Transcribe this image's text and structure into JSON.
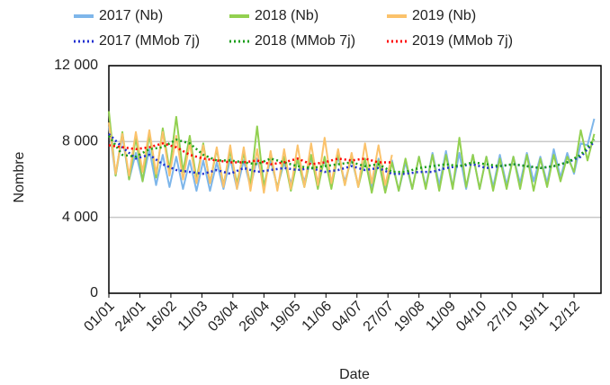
{
  "chart_data": {
    "type": "line",
    "x_label": "Date",
    "y_label": "Nombre",
    "xlim": [
      0,
      365
    ],
    "ylim": [
      0,
      12000
    ],
    "xticks": [
      {
        "value": 0,
        "label": "01/01"
      },
      {
        "value": 23,
        "label": "24/01"
      },
      {
        "value": 46,
        "label": "16/02"
      },
      {
        "value": 69,
        "label": "11/03"
      },
      {
        "value": 92,
        "label": "03/04"
      },
      {
        "value": 115,
        "label": "26/04"
      },
      {
        "value": 138,
        "label": "19/05"
      },
      {
        "value": 161,
        "label": "11/06"
      },
      {
        "value": 184,
        "label": "04/07"
      },
      {
        "value": 207,
        "label": "27/07"
      },
      {
        "value": 230,
        "label": "19/08"
      },
      {
        "value": 253,
        "label": "11/09"
      },
      {
        "value": 276,
        "label": "04/10"
      },
      {
        "value": 299,
        "label": "27/10"
      },
      {
        "value": 322,
        "label": "19/11"
      },
      {
        "value": 345,
        "label": "12/12"
      }
    ],
    "yticks": [
      0,
      {
        "value": 4000,
        "label": "4 000"
      },
      {
        "value": 8000,
        "label": "8 000"
      },
      {
        "value": 12000,
        "label": "12 000"
      }
    ],
    "grid": true,
    "series": [
      {
        "name": "2017 (Nb)",
        "color": "#7eb6ea",
        "dashed": false,
        "x": [
          0,
          5,
          10,
          15,
          20,
          25,
          30,
          35,
          40,
          45,
          50,
          55,
          60,
          65,
          70,
          75,
          80,
          85,
          90,
          95,
          100,
          105,
          110,
          115,
          120,
          125,
          130,
          135,
          140,
          145,
          150,
          155,
          160,
          165,
          170,
          175,
          180,
          185,
          190,
          195,
          200,
          205,
          210,
          215,
          220,
          225,
          230,
          235,
          240,
          245,
          250,
          255,
          260,
          265,
          270,
          275,
          280,
          285,
          290,
          295,
          300,
          305,
          310,
          315,
          320,
          325,
          330,
          335,
          340,
          345,
          350,
          355,
          360
        ],
        "values": [
          8800,
          6200,
          8300,
          6000,
          7400,
          5900,
          7600,
          5700,
          7300,
          5600,
          7200,
          5500,
          7000,
          5400,
          7000,
          5400,
          6900,
          5500,
          7100,
          5500,
          7000,
          5600,
          7100,
          5700,
          7000,
          5600,
          6900,
          5800,
          7000,
          5900,
          7100,
          5900,
          7000,
          5800,
          7200,
          5900,
          7100,
          5700,
          7000,
          5600,
          7100,
          5500,
          7000,
          5400,
          6900,
          5500,
          7200,
          5600,
          7400,
          5700,
          7500,
          5600,
          7400,
          5500,
          7300,
          5500,
          7200,
          5600,
          7300,
          5700,
          7200,
          5800,
          7400,
          5900,
          7200,
          5800,
          7600,
          6100,
          7400,
          6300,
          7900,
          7800,
          9200
        ]
      },
      {
        "name": "2018 (Nb)",
        "color": "#92d050",
        "dashed": false,
        "x": [
          0,
          5,
          10,
          15,
          20,
          25,
          30,
          35,
          40,
          45,
          50,
          55,
          60,
          65,
          70,
          75,
          80,
          85,
          90,
          95,
          100,
          105,
          110,
          115,
          120,
          125,
          130,
          135,
          140,
          145,
          150,
          155,
          160,
          165,
          170,
          175,
          180,
          185,
          190,
          195,
          200,
          205,
          210,
          215,
          220,
          225,
          230,
          235,
          240,
          245,
          250,
          255,
          260,
          265,
          270,
          275,
          280,
          285,
          290,
          295,
          300,
          305,
          310,
          315,
          320,
          325,
          330,
          335,
          340,
          345,
          350,
          355,
          360
        ],
        "values": [
          9600,
          6200,
          8500,
          6000,
          8200,
          5900,
          8400,
          6100,
          8700,
          6500,
          9300,
          6400,
          8300,
          6000,
          7900,
          5800,
          7600,
          5700,
          7500,
          5800,
          7400,
          5700,
          8800,
          5600,
          7300,
          5500,
          7200,
          5400,
          7100,
          5600,
          7300,
          5500,
          7200,
          5500,
          7400,
          5700,
          7300,
          5600,
          7100,
          5300,
          7000,
          5300,
          6900,
          5400,
          7100,
          5500,
          7200,
          5500,
          7300,
          5400,
          7300,
          5500,
          8200,
          5600,
          7300,
          5500,
          7200,
          5400,
          7100,
          5500,
          7200,
          5500,
          7300,
          5400,
          7100,
          5600,
          7300,
          5900,
          7200,
          6400,
          8600,
          7000,
          8400
        ]
      },
      {
        "name": "2019 (Nb)",
        "color": "#fbc26b",
        "dashed": false,
        "x": [
          0,
          5,
          10,
          15,
          20,
          25,
          30,
          35,
          40,
          45,
          50,
          55,
          60,
          65,
          70,
          75,
          80,
          85,
          90,
          95,
          100,
          105,
          110,
          115,
          120,
          125,
          130,
          135,
          140,
          145,
          150,
          155,
          160,
          165,
          170,
          175,
          180,
          185,
          190,
          195,
          200,
          205,
          210
        ],
        "values": [
          9000,
          6300,
          8400,
          6200,
          8500,
          6400,
          8600,
          6300,
          8500,
          6200,
          8300,
          6000,
          7900,
          5800,
          7800,
          5800,
          7700,
          5600,
          7800,
          5500,
          7700,
          5400,
          7600,
          5300,
          7500,
          5400,
          7600,
          5500,
          7800,
          5600,
          7900,
          5700,
          8200,
          5800,
          7600,
          5700,
          7400,
          5600,
          7900,
          5800,
          7800,
          5700,
          7300
        ]
      },
      {
        "name": "2017 (MMob 7j)",
        "color": "#1f2fd0",
        "dashed": true,
        "x": [
          0,
          10,
          20,
          30,
          40,
          50,
          60,
          70,
          80,
          90,
          100,
          110,
          120,
          130,
          140,
          150,
          160,
          170,
          180,
          190,
          200,
          210,
          220,
          230,
          240,
          250,
          260,
          270,
          280,
          290,
          300,
          310,
          320,
          330,
          340,
          350,
          360
        ],
        "values": [
          8400,
          7700,
          7100,
          7300,
          6800,
          6500,
          6400,
          6300,
          6500,
          6300,
          6600,
          6400,
          6500,
          6600,
          6500,
          6600,
          6400,
          6500,
          6700,
          6500,
          6600,
          6300,
          6300,
          6400,
          6400,
          6600,
          6700,
          6800,
          6600,
          6700,
          6800,
          6700,
          6600,
          6700,
          6900,
          7200,
          8000
        ]
      },
      {
        "name": "2018 (MMob 7j)",
        "color": "#1a9e1a",
        "dashed": true,
        "x": [
          0,
          10,
          20,
          30,
          40,
          50,
          60,
          70,
          80,
          90,
          100,
          110,
          120,
          130,
          140,
          150,
          160,
          170,
          180,
          190,
          200,
          210,
          220,
          230,
          240,
          250,
          260,
          270,
          280,
          290,
          300,
          310,
          320,
          330,
          340,
          350,
          360
        ],
        "values": [
          8300,
          7300,
          7200,
          7600,
          7700,
          8100,
          7900,
          7300,
          7000,
          7000,
          6900,
          6800,
          7100,
          6900,
          6700,
          6600,
          6700,
          6800,
          6900,
          6700,
          6800,
          6400,
          6400,
          6600,
          6700,
          6800,
          6700,
          6900,
          6800,
          6700,
          6800,
          6700,
          6600,
          6700,
          6900,
          7300,
          8100
        ]
      },
      {
        "name": "2019 (MMob 7j)",
        "color": "#ff0000",
        "dashed": true,
        "x": [
          0,
          10,
          20,
          30,
          40,
          50,
          60,
          70,
          80,
          90,
          100,
          110,
          120,
          130,
          140,
          150,
          160,
          170,
          180,
          190,
          200,
          210
        ],
        "values": [
          7800,
          7700,
          7600,
          7700,
          7900,
          7700,
          7300,
          7100,
          7000,
          6900,
          6900,
          7000,
          6800,
          6900,
          7100,
          6800,
          6900,
          7100,
          7000,
          7100,
          6900,
          6900
        ]
      }
    ]
  }
}
